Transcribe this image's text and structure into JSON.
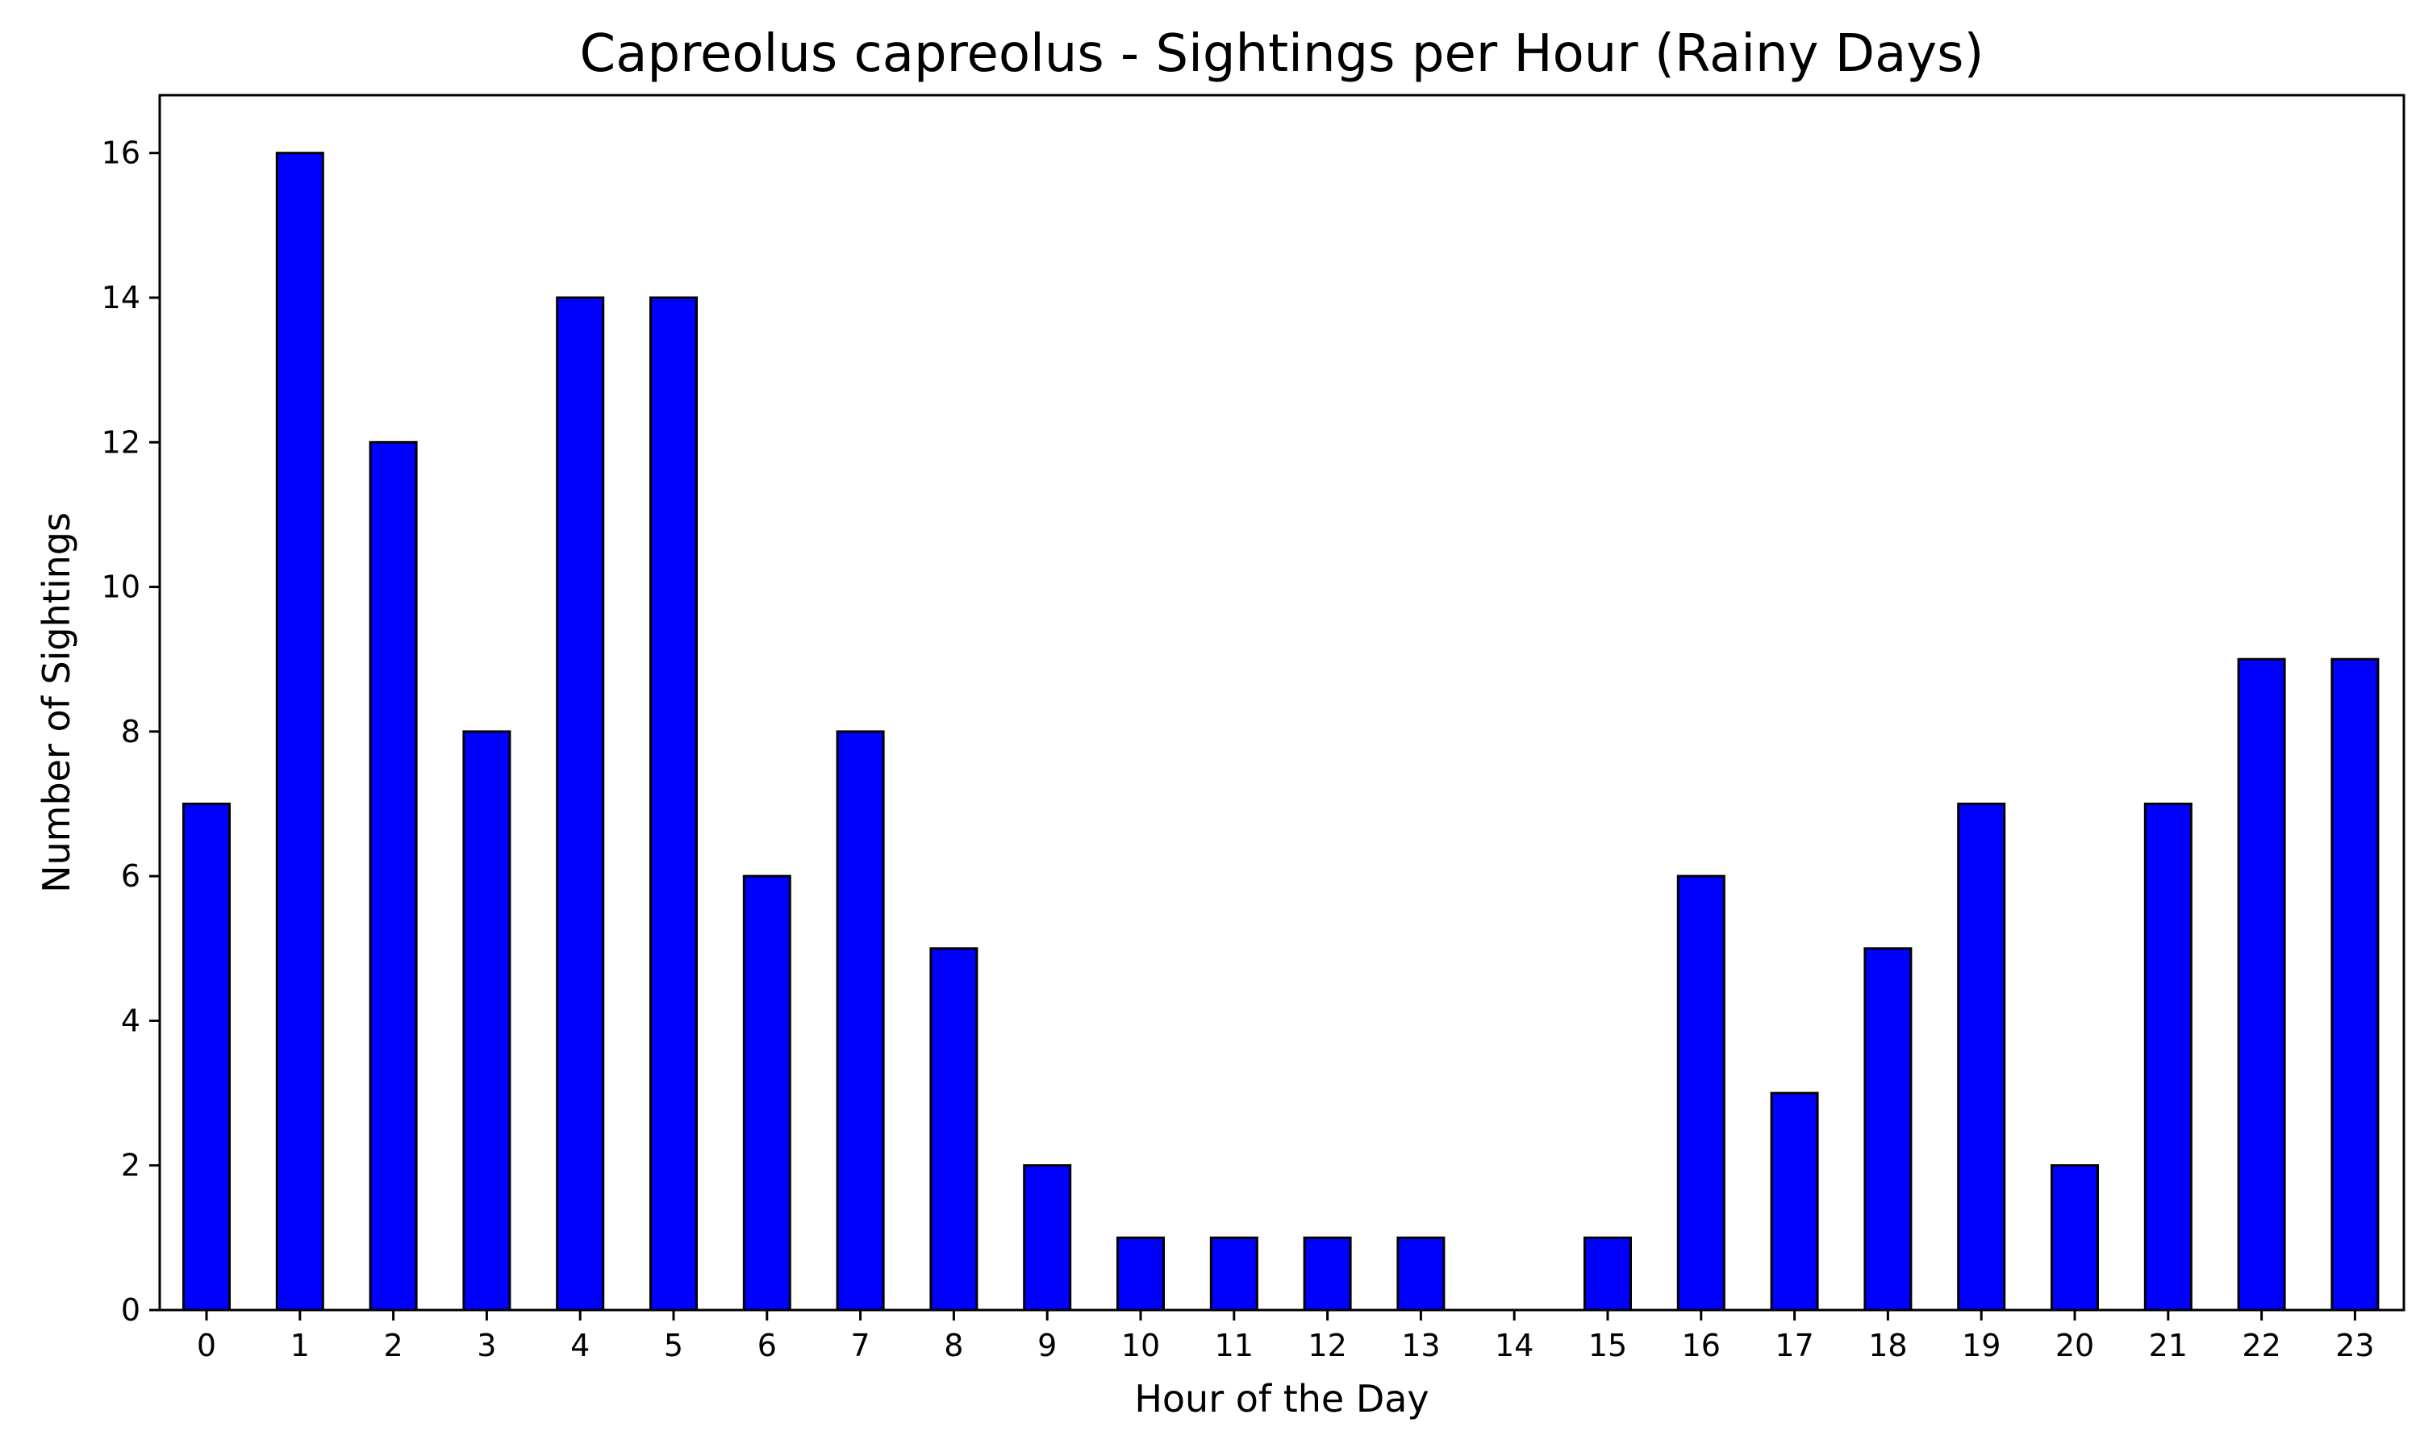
{
  "chart_data": {
    "type": "bar",
    "title": "Capreolus capreolus - Sightings per Hour (Rainy Days)",
    "xlabel": "Hour of the Day",
    "ylabel": "Number of Sightings",
    "categories": [
      "0",
      "1",
      "2",
      "3",
      "4",
      "5",
      "6",
      "7",
      "8",
      "9",
      "10",
      "11",
      "12",
      "13",
      "14",
      "15",
      "16",
      "17",
      "18",
      "19",
      "20",
      "21",
      "22",
      "23"
    ],
    "values": [
      7,
      16,
      12,
      8,
      14,
      14,
      6,
      8,
      5,
      2,
      1,
      1,
      1,
      1,
      0,
      1,
      6,
      3,
      5,
      7,
      2,
      7,
      9,
      9
    ],
    "ylim": [
      0,
      16.8
    ],
    "yticks": [
      0,
      2,
      4,
      6,
      8,
      10,
      12,
      14,
      16
    ],
    "grid": false,
    "legend": "none",
    "colors": {
      "bar_fill": "#0000ff",
      "bar_edge": "#000000",
      "axes": "#000000",
      "background": "#ffffff"
    }
  }
}
